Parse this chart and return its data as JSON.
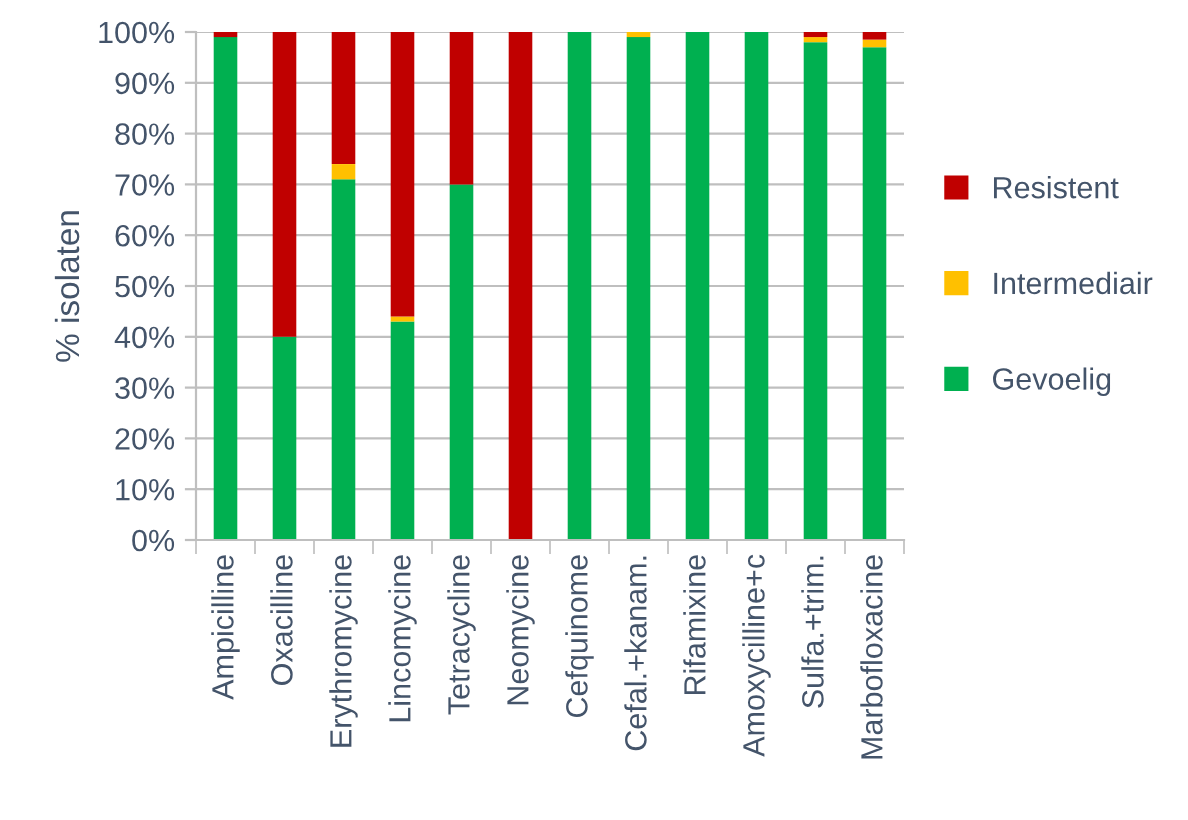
{
  "chart_data": {
    "type": "bar",
    "stacked": true,
    "ylabel": "% isolaten",
    "categories": [
      "Ampicilline",
      "Oxacilline",
      "Erythromycine",
      "Lincomycine",
      "Tetracycline",
      "Neomycine",
      "Cefquinome",
      "Cefal.+kanam.",
      "Rifamixine",
      "Amoxycilline+c",
      "Sulfa.+trim.",
      "Marbofloxacine"
    ],
    "series": [
      {
        "name": "Gevoelig",
        "color": "#00b050",
        "values": [
          99,
          40,
          71,
          43,
          70,
          0,
          100,
          99,
          100,
          100,
          98,
          97
        ]
      },
      {
        "name": "Intermediair",
        "color": "#ffc000",
        "values": [
          0,
          0,
          3,
          1,
          0,
          0,
          0,
          1,
          0,
          0,
          1,
          1.5
        ]
      },
      {
        "name": "Resistent",
        "color": "#c00000",
        "values": [
          1,
          60,
          26,
          56,
          30,
          100,
          0,
          0,
          0,
          0,
          1,
          1.5
        ]
      }
    ],
    "ylim": [
      0,
      100
    ],
    "yticks": [
      {
        "value": 0,
        "label": "0%"
      },
      {
        "value": 10,
        "label": "10%"
      },
      {
        "value": 20,
        "label": "20%"
      },
      {
        "value": 30,
        "label": "30%"
      },
      {
        "value": 40,
        "label": "40%"
      },
      {
        "value": 50,
        "label": "50%"
      },
      {
        "value": 60,
        "label": "60%"
      },
      {
        "value": 70,
        "label": "70%"
      },
      {
        "value": 80,
        "label": "80%"
      },
      {
        "value": 90,
        "label": "90%"
      },
      {
        "value": 100,
        "label": "100%"
      }
    ],
    "grid": "y",
    "legend": "right"
  }
}
